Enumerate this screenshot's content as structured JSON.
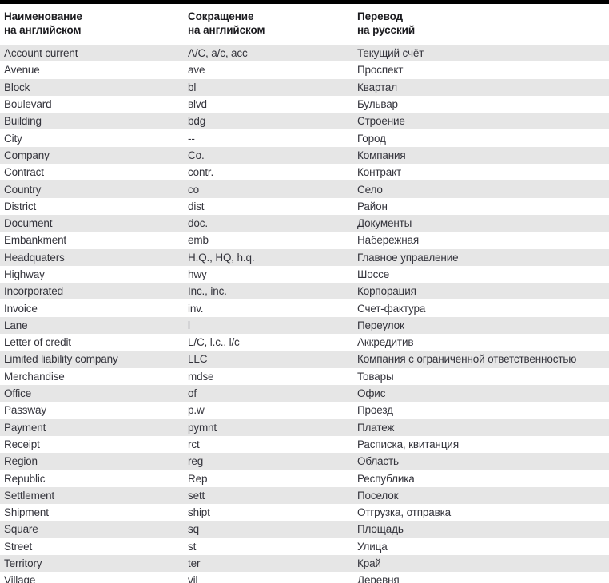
{
  "page": {
    "top_bar_color": "#000000",
    "stripe_color": "#e6e6e6",
    "text_color": "#34343c",
    "header_text_color": "#1b1b1f"
  },
  "table": {
    "columns": [
      {
        "line1": "Наименование",
        "line2": "на английском"
      },
      {
        "line1": "Сокращение",
        "line2": "на английском"
      },
      {
        "line1": "Перевод",
        "line2": "на русский"
      }
    ],
    "rows": [
      {
        "en": "Account current",
        "abbr": "A/C, a/c, acc",
        "ru": "Текущий счёт"
      },
      {
        "en": "Avenue",
        "abbr": "ave",
        "ru": "Проспект"
      },
      {
        "en": "Block",
        "abbr": "bl",
        "ru": "Квартал"
      },
      {
        "en": "Boulevard",
        "abbr": "вlvd",
        "ru": "Бульвар"
      },
      {
        "en": "Building",
        "abbr": "bdg",
        "ru": "Строение"
      },
      {
        "en": "City",
        "abbr": "--",
        "ru": "Город"
      },
      {
        "en": "Company",
        "abbr": "Co.",
        "ru": "Компания"
      },
      {
        "en": "Contract",
        "abbr": "contr.",
        "ru": "Контракт"
      },
      {
        "en": "Country",
        "abbr": "co",
        "ru": "Село"
      },
      {
        "en": "District",
        "abbr": "dist",
        "ru": "Район"
      },
      {
        "en": "Document",
        "abbr": "doc.",
        "ru": "Документы"
      },
      {
        "en": "Embankment",
        "abbr": "emb",
        "ru": "Набережная"
      },
      {
        "en": "Headquaters",
        "abbr": "H.Q., HQ, h.q.",
        "ru": "Главное управление"
      },
      {
        "en": "Highway",
        "abbr": "hwy",
        "ru": "Шоссе"
      },
      {
        "en": "Incorporated",
        "abbr": "Inc., inc.",
        "ru": "Корпорация"
      },
      {
        "en": "Invoice",
        "abbr": "inv.",
        "ru": "Счет-фактура"
      },
      {
        "en": "Lane",
        "abbr": "l",
        "ru": "Переулок"
      },
      {
        "en": "Letter of credit",
        "abbr": "L/C, l.c., l/c",
        "ru": "Аккредитив"
      },
      {
        "en": "Limited liability company",
        "abbr": "LLC",
        "ru": "Компания с ограниченной ответственностью"
      },
      {
        "en": "Merchandise",
        "abbr": "mdse",
        "ru": "Товары"
      },
      {
        "en": "Office",
        "abbr": "of",
        "ru": "Офис"
      },
      {
        "en": "Passway",
        "abbr": "p.w",
        "ru": "Проезд"
      },
      {
        "en": "Payment",
        "abbr": "pymnt",
        "ru": "Платеж"
      },
      {
        "en": "Receipt",
        "abbr": "rct",
        "ru": "Расписка, квитанция"
      },
      {
        "en": "Region",
        "abbr": "reg",
        "ru": "Область"
      },
      {
        "en": "Republic",
        "abbr": "Rep",
        "ru": "Республика"
      },
      {
        "en": "Settlement",
        "abbr": "sett",
        "ru": "Поселок"
      },
      {
        "en": "Shipment",
        "abbr": "shipt",
        "ru": "Отгрузка, отправка"
      },
      {
        "en": "Square",
        "abbr": "sq",
        "ru": "Площадь"
      },
      {
        "en": "Street",
        "abbr": "st",
        "ru": "Улица"
      },
      {
        "en": "Territory",
        "abbr": "ter",
        "ru": "Край"
      },
      {
        "en": "Village",
        "abbr": "vil",
        "ru": "Деревня"
      }
    ]
  }
}
